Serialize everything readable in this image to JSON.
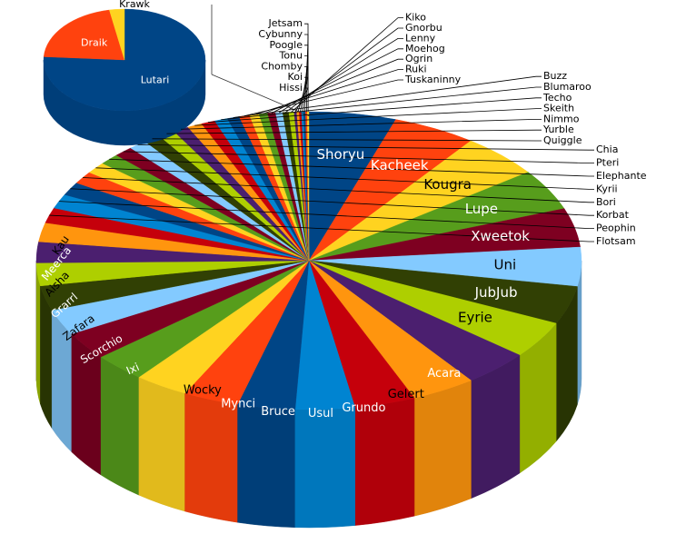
{
  "chart_data": {
    "type": "pie",
    "style": "3d",
    "main_pie": {
      "slices": [
        {
          "label": "Shoryu",
          "value": 5.0,
          "color": "#004586"
        },
        {
          "label": "Kacheek",
          "value": 4.8,
          "color": "#ff420e"
        },
        {
          "label": "Kougra",
          "value": 4.6,
          "color": "#ffd320"
        },
        {
          "label": "Lupe",
          "value": 4.3,
          "color": "#579d1c"
        },
        {
          "label": "Xweetok",
          "value": 4.1,
          "color": "#7e0021"
        },
        {
          "label": "Uni",
          "value": 4.1,
          "color": "#83caff"
        },
        {
          "label": "JubJub",
          "value": 4.0,
          "color": "#314004"
        },
        {
          "label": "Eyrie",
          "value": 3.9,
          "color": "#aecf00"
        },
        {
          "label": "Acara",
          "value": 3.8,
          "color": "#4b1f6f"
        },
        {
          "label": "Gelert",
          "value": 3.7,
          "color": "#ff950e"
        },
        {
          "label": "Grundo",
          "value": 3.5,
          "color": "#c5000b"
        },
        {
          "label": "Usul",
          "value": 3.4,
          "color": "#0084d1"
        },
        {
          "label": "Bruce",
          "value": 3.3,
          "color": "#004586"
        },
        {
          "label": "Mynci",
          "value": 3.2,
          "color": "#ff420e"
        },
        {
          "label": "Wocky",
          "value": 3.1,
          "color": "#ffd320"
        },
        {
          "label": "Ixi",
          "value": 3.0,
          "color": "#579d1c"
        },
        {
          "label": "Scorchio",
          "value": 2.9,
          "color": "#7e0021"
        },
        {
          "label": "Zafara",
          "value": 2.7,
          "color": "#83caff"
        },
        {
          "label": "Grarrl",
          "value": 2.6,
          "color": "#314004"
        },
        {
          "label": "Aisha",
          "value": 2.4,
          "color": "#aecf00"
        },
        {
          "label": "Meerca",
          "value": 2.2,
          "color": "#4b1f6f"
        },
        {
          "label": "Kau",
          "value": 2.0,
          "color": "#ff950e"
        },
        {
          "label": "Flotsam",
          "value": 1.6,
          "color": "#c5000b"
        },
        {
          "label": "Peophin",
          "value": 1.5,
          "color": "#0084d1"
        },
        {
          "label": "Korbat",
          "value": 1.4,
          "color": "#004586"
        },
        {
          "label": "Bori",
          "value": 1.3,
          "color": "#ff420e"
        },
        {
          "label": "Kyrii",
          "value": 1.2,
          "color": "#ffd320"
        },
        {
          "label": "Elephante",
          "value": 1.15,
          "color": "#579d1c"
        },
        {
          "label": "Pteri",
          "value": 1.1,
          "color": "#7e0021"
        },
        {
          "label": "Chia",
          "value": 1.05,
          "color": "#83caff"
        },
        {
          "label": "Quiggle",
          "value": 1.0,
          "color": "#314004"
        },
        {
          "label": "Yurble",
          "value": 0.95,
          "color": "#aecf00"
        },
        {
          "label": "Nimmo",
          "value": 0.9,
          "color": "#4b1f6f"
        },
        {
          "label": "Skeith",
          "value": 0.85,
          "color": "#ff950e"
        },
        {
          "label": "Techo",
          "value": 0.8,
          "color": "#c5000b"
        },
        {
          "label": "Blumaroo",
          "value": 0.75,
          "color": "#0084d1"
        },
        {
          "label": "Buzz",
          "value": 0.7,
          "color": "#004586"
        },
        {
          "label": "Tuskaninny",
          "value": 0.6,
          "color": "#ff420e"
        },
        {
          "label": "Ruki",
          "value": 0.55,
          "color": "#ffd320"
        },
        {
          "label": "Ogrin",
          "value": 0.5,
          "color": "#579d1c"
        },
        {
          "label": "Moehog",
          "value": 0.45,
          "color": "#7e0021"
        },
        {
          "label": "Lenny",
          "value": 0.4,
          "color": "#83caff"
        },
        {
          "label": "Gnorbu",
          "value": 0.35,
          "color": "#314004"
        },
        {
          "label": "Kiko",
          "value": 0.3,
          "color": "#aecf00"
        },
        {
          "label": "Hissi",
          "value": 0.15,
          "color": "#4b1f6f"
        },
        {
          "label": "Koi",
          "value": 0.14,
          "color": "#ff950e"
        },
        {
          "label": "Chomby",
          "value": 0.13,
          "color": "#c5000b"
        },
        {
          "label": "Tonu",
          "value": 0.12,
          "color": "#0084d1"
        },
        {
          "label": "Poogle",
          "value": 0.11,
          "color": "#004586"
        },
        {
          "label": "Cybunny",
          "value": 0.1,
          "color": "#ff420e"
        },
        {
          "label": "Jetsam",
          "value": 0.09,
          "color": "#ffd320"
        }
      ]
    },
    "detail_pie": {
      "slices": [
        {
          "label": "Lutari",
          "value": 76,
          "color": "#004586"
        },
        {
          "label": "Draik",
          "value": 21,
          "color": "#ff420e"
        },
        {
          "label": "Krawk",
          "value": 3,
          "color": "#ffd320"
        }
      ]
    }
  }
}
